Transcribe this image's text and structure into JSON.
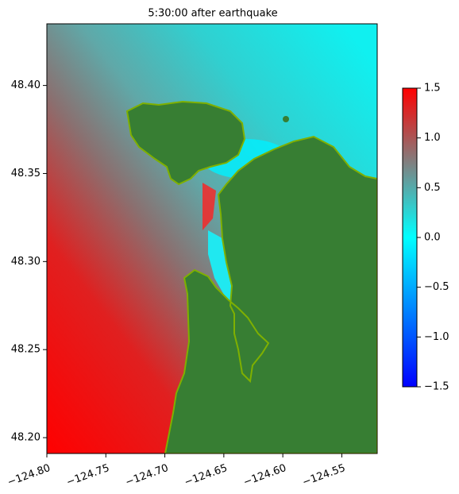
{
  "chart_data": {
    "type": "raster-map",
    "title": "5:30:00 after earthquake",
    "xlim": [
      -124.8,
      -124.52
    ],
    "ylim": [
      48.191,
      48.435
    ],
    "xticks": [
      {
        "value": -124.8,
        "label": "−124.80"
      },
      {
        "value": -124.75,
        "label": "−124.75"
      },
      {
        "value": -124.7,
        "label": "−124.70"
      },
      {
        "value": -124.65,
        "label": "−124.65"
      },
      {
        "value": -124.6,
        "label": "−124.60"
      },
      {
        "value": -124.55,
        "label": "−124.55"
      }
    ],
    "yticks": [
      {
        "value": 48.2,
        "label": "48.20"
      },
      {
        "value": 48.25,
        "label": "48.25"
      },
      {
        "value": 48.3,
        "label": "48.30"
      },
      {
        "value": 48.35,
        "label": "48.35"
      },
      {
        "value": 48.4,
        "label": "48.40"
      }
    ],
    "colorbar": {
      "clim": [
        -1.5,
        1.5
      ],
      "colormap": [
        "#0000ff",
        "#0080ff",
        "#00ffff",
        "#808080",
        "#ff0000"
      ],
      "ticks": [
        {
          "value": -1.5,
          "label": "−1.5"
        },
        {
          "value": -1.0,
          "label": "−1.0"
        },
        {
          "value": -0.5,
          "label": "−0.5"
        },
        {
          "value": 0.0,
          "label": "0.0"
        },
        0.5,
        {
          "value": 1.0,
          "label": "1.0"
        },
        1.5
      ]
    }
  }
}
